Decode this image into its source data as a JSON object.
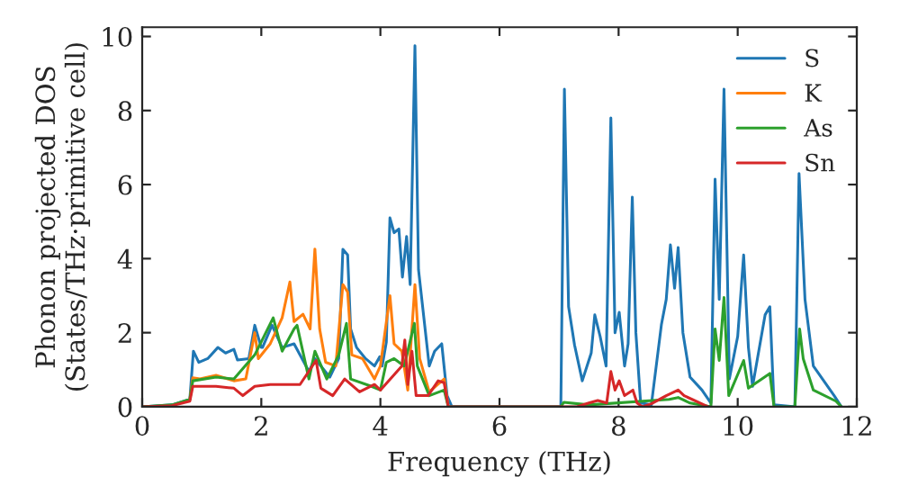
{
  "chart_data": {
    "type": "line",
    "xlabel": "Frequency (THz)",
    "ylabel": "Phonon projected DOS\n(States/THz·primitive cell)",
    "xlim": [
      0,
      12
    ],
    "ylim": [
      0,
      10.25
    ],
    "xticks": [
      0,
      2,
      4,
      6,
      8,
      10,
      12
    ],
    "yticks": [
      0,
      2,
      4,
      6,
      8,
      10
    ],
    "grid": false,
    "legend": "top right",
    "series": [
      {
        "name": "S",
        "color": "#1f77b4",
        "x": [
          0,
          0.5,
          0.8,
          0.86,
          0.95,
          1.1,
          1.27,
          1.4,
          1.54,
          1.6,
          1.79,
          1.89,
          2.0,
          2.02,
          2.18,
          2.35,
          2.55,
          2.8,
          2.9,
          3.15,
          3.3,
          3.37,
          3.45,
          3.5,
          3.6,
          3.75,
          3.9,
          3.99,
          4.03,
          4.1,
          4.16,
          4.23,
          4.31,
          4.37,
          4.44,
          4.5,
          4.58,
          4.64,
          4.82,
          4.91,
          5.03,
          5.12,
          5.2,
          7.03,
          7.09,
          7.16,
          7.26,
          7.39,
          7.54,
          7.6,
          7.69,
          7.79,
          7.87,
          7.94,
          8.01,
          8.1,
          8.16,
          8.23,
          8.29,
          8.37,
          8.55,
          8.72,
          8.8,
          8.87,
          8.94,
          9.0,
          9.08,
          9.2,
          9.4,
          9.55,
          9.62,
          9.69,
          9.77,
          9.86,
          10.0,
          10.1,
          10.18,
          10.25,
          10.46,
          10.54,
          10.61,
          10.96,
          11.03,
          11.13,
          11.27,
          11.62,
          11.74
        ],
        "values": [
          0,
          0.05,
          0.2,
          1.5,
          1.2,
          1.3,
          1.6,
          1.45,
          1.55,
          1.26,
          1.3,
          2.2,
          1.6,
          1.6,
          2.2,
          1.6,
          1.7,
          0.95,
          1.3,
          0.8,
          1.3,
          4.25,
          4.1,
          2.1,
          1.6,
          1.3,
          1.1,
          1.35,
          1.1,
          1.75,
          5.1,
          4.7,
          4.8,
          3.5,
          4.6,
          3.3,
          9.75,
          3.7,
          1.1,
          1.5,
          1.7,
          0.3,
          0,
          0,
          8.58,
          2.7,
          1.67,
          0.7,
          1.45,
          2.48,
          1.9,
          1.1,
          7.8,
          2.0,
          2.55,
          1.1,
          1.7,
          5.66,
          2.0,
          0.1,
          0.05,
          2.23,
          2.9,
          4.37,
          3.2,
          4.3,
          2.0,
          0.8,
          0.45,
          0.1,
          6.15,
          2.9,
          8.58,
          0.75,
          1.9,
          4.1,
          1.6,
          0.55,
          2.48,
          2.7,
          0.05,
          0,
          6.3,
          2.9,
          1.1,
          0.3,
          0
        ]
      },
      {
        "name": "K",
        "color": "#ff7f0e",
        "x": [
          0.8,
          0.85,
          0.97,
          1.24,
          1.54,
          1.74,
          1.89,
          1.95,
          2.15,
          2.35,
          2.48,
          2.55,
          2.7,
          2.82,
          2.9,
          2.98,
          3.08,
          3.25,
          3.37,
          3.45,
          3.52,
          3.7,
          3.9,
          4.0,
          4.16,
          4.23,
          4.36,
          4.46,
          4.58,
          4.66,
          4.82,
          5.07,
          5.14
        ],
        "values": [
          0.2,
          0.78,
          0.75,
          0.85,
          0.7,
          0.75,
          2.0,
          1.3,
          1.7,
          2.4,
          3.37,
          2.3,
          2.5,
          2.1,
          4.26,
          2.1,
          1.2,
          1.1,
          3.3,
          3.1,
          1.4,
          1.3,
          0.75,
          1.1,
          3.0,
          1.7,
          1.5,
          0.45,
          3.3,
          1.3,
          0.4,
          0.75,
          0
        ]
      },
      {
        "name": "As",
        "color": "#2ca02c",
        "x": [
          0,
          0.5,
          0.8,
          0.85,
          1.24,
          1.54,
          1.89,
          2.2,
          2.35,
          2.55,
          2.6,
          2.8,
          2.9,
          3.1,
          3.3,
          3.43,
          3.5,
          3.85,
          4.0,
          4.1,
          4.23,
          4.4,
          4.57,
          4.62,
          4.82,
          5.07,
          5.14,
          7.03,
          7.08,
          7.5,
          8.85,
          9.0,
          9.2,
          9.55,
          9.62,
          9.69,
          9.77,
          9.85,
          10.1,
          10.18,
          10.54,
          10.61,
          10.96,
          11.04,
          11.1,
          11.27,
          11.65,
          11.74
        ],
        "values": [
          0,
          0.05,
          0.2,
          0.7,
          0.8,
          0.75,
          1.4,
          2.4,
          1.5,
          2.1,
          2.2,
          0.75,
          1.5,
          0.75,
          1.4,
          2.25,
          0.75,
          0.55,
          0.45,
          1.2,
          1.3,
          1.1,
          2.25,
          1.1,
          0.3,
          0.45,
          0,
          0,
          0.12,
          0.05,
          0.2,
          0.25,
          0.1,
          0,
          2.1,
          1.25,
          2.95,
          0.3,
          1.25,
          0.5,
          0.9,
          0,
          0,
          2.1,
          1.3,
          0.45,
          0.15,
          0
        ]
      },
      {
        "name": "Sn",
        "color": "#d62728",
        "x": [
          0,
          0.5,
          0.8,
          0.85,
          1.24,
          1.54,
          1.69,
          1.89,
          2.15,
          2.65,
          2.92,
          3.0,
          3.2,
          3.4,
          3.65,
          3.9,
          4.0,
          4.36,
          4.41,
          4.46,
          4.53,
          4.6,
          4.8,
          4.97,
          5.07,
          5.14,
          7.3,
          7.5,
          7.65,
          7.8,
          7.87,
          7.94,
          8.01,
          8.1,
          8.24,
          8.31,
          8.4,
          8.55,
          8.8,
          9.0,
          9.1,
          9.5
        ],
        "values": [
          0,
          0.03,
          0.15,
          0.55,
          0.55,
          0.5,
          0.3,
          0.55,
          0.6,
          0.6,
          1.25,
          0.5,
          0.3,
          0.75,
          0.4,
          0.6,
          0.45,
          1.1,
          1.8,
          0.6,
          1.5,
          0.3,
          0.3,
          0.7,
          0.65,
          0,
          0,
          0.1,
          0.17,
          0.1,
          0.95,
          0.45,
          0.7,
          0.3,
          0.45,
          0.1,
          0,
          0.08,
          0.3,
          0.45,
          0.3,
          0
        ]
      }
    ]
  }
}
